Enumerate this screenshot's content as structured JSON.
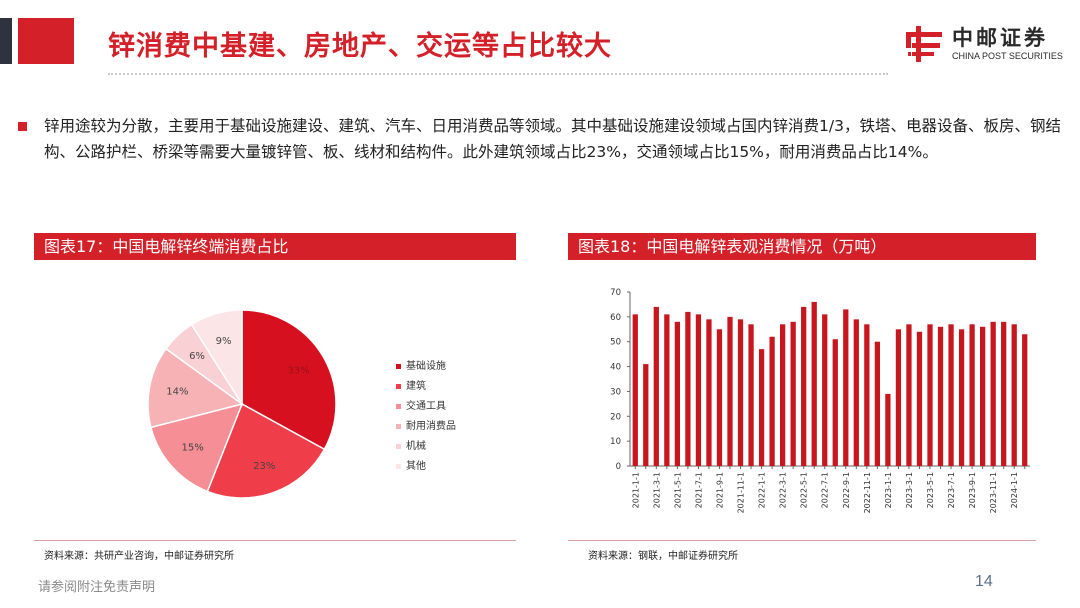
{
  "header": {
    "title": "锌消费中基建、房地产、交运等占比较大",
    "logo_cn": "中邮证券",
    "logo_en": "CHINA POST SECURITIES"
  },
  "intro": {
    "text": "锌用途较为分散，主要用于基础设施建设、建筑、汽车、日用消费品等领域。其中基础设施建设领域占国内锌消费1/3，铁塔、电器设备、板房、钢结构、公路护栏、桥梁等需要大量镀锌管、板、线材和结构件。此外建筑领域占比23%，交通领域占比15%，耐用消费品占比14%。"
  },
  "sections": {
    "left_title": "图表17：中国电解锌终端消费占比",
    "right_title": "图表18：中国电解锌表观消费情况（万吨）"
  },
  "colors": {
    "accent": "#d42129",
    "pie": [
      "#d6101e",
      "#ef3e49",
      "#f58e95",
      "#f7b2b6",
      "#f9d0d3",
      "#fbe5e7"
    ]
  },
  "chart_data": [
    {
      "type": "pie",
      "title": "图表17：中国电解锌终端消费占比",
      "categories": [
        "基础设施",
        "建筑",
        "交通工具",
        "耐用消费品",
        "机械",
        "其他"
      ],
      "values": [
        33,
        23,
        15,
        14,
        6,
        9
      ],
      "labels": [
        "33%",
        "23%",
        "15%",
        "14%",
        "6%",
        "9%"
      ],
      "legend": "right"
    },
    {
      "type": "bar",
      "title": "图表18：中国电解锌表观消费情况（万吨）",
      "x": [
        "2021-1-1",
        "2021-2-1",
        "2021-3-1",
        "2021-4-1",
        "2021-5-1",
        "2021-6-1",
        "2021-7-1",
        "2021-8-1",
        "2021-9-1",
        "2021-10-1",
        "2021-11-1",
        "2021-12-1",
        "2022-1-1",
        "2022-2-1",
        "2022-3-1",
        "2022-4-1",
        "2022-5-1",
        "2022-6-1",
        "2022-7-1",
        "2022-8-1",
        "2022-9-1",
        "2022-10-1",
        "2022-11-1",
        "2022-12-1",
        "2023-1-1",
        "2023-2-1",
        "2023-3-1",
        "2023-4-1",
        "2023-5-1",
        "2023-6-1",
        "2023-7-1",
        "2023-8-1",
        "2023-9-1",
        "2023-10-1",
        "2023-11-1",
        "2023-12-1",
        "2024-1-1",
        "2024-2-1"
      ],
      "values": [
        61,
        41,
        64,
        61,
        58,
        62,
        61,
        59,
        55,
        60,
        59,
        57,
        47,
        52,
        57,
        58,
        64,
        66,
        61,
        51,
        63,
        59,
        57,
        50,
        29,
        55,
        57,
        54,
        57,
        56,
        57,
        55,
        57,
        56,
        58,
        58,
        57,
        53
      ],
      "tick_labels": [
        "2021-1-1",
        "2021-3-1",
        "2021-5-1",
        "2021-7-1",
        "2021-9-1",
        "2021-11-1",
        "2022-1-1",
        "2022-3-1",
        "2022-5-1",
        "2022-7-1",
        "2022-9-1",
        "2022-11-1",
        "2023-1-1",
        "2023-3-1",
        "2023-5-1",
        "2023-7-1",
        "2023-9-1",
        "2023-11-1",
        "2024-1-1"
      ],
      "yticks": [
        0,
        10,
        20,
        30,
        40,
        50,
        60,
        70
      ],
      "ylim": [
        0,
        70
      ],
      "grid": false
    }
  ],
  "footer": {
    "source_left": "资料来源：共研产业咨询，中邮证券研究所",
    "source_right": "资料来源：钢联，中邮证券研究所",
    "disclaimer": "请参阅附注免责声明",
    "page_number": "14"
  }
}
